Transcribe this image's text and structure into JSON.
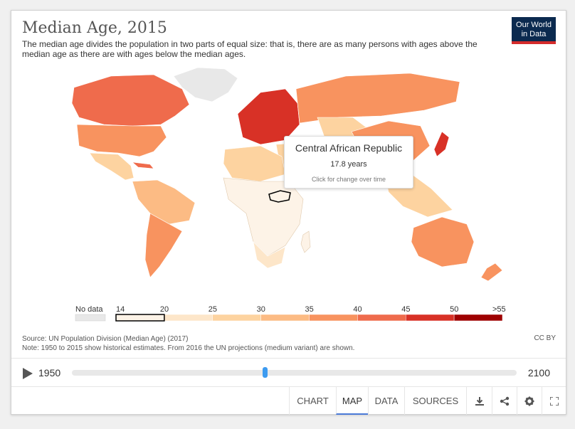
{
  "header": {
    "title": "Median Age, 2015",
    "subtitle": "The median age divides the population in two parts of equal size: that is, there are as many persons with ages above the median age as there are with ages below the median ages.",
    "logo_line1": "Our World",
    "logo_line2": "in Data"
  },
  "tooltip": {
    "country": "Central African Republic",
    "value": "17.8 years",
    "hint": "Click for change over time"
  },
  "legend": {
    "no_data_label": "No data",
    "ticks": [
      "14",
      "20",
      "25",
      "30",
      "35",
      "40",
      "45",
      "50",
      ">55"
    ],
    "colors": [
      "#fdf3e7",
      "#fde6c9",
      "#fdd3a0",
      "#fcbb84",
      "#f8935f",
      "#ef6b4c",
      "#d83126",
      "#9e0000"
    ],
    "no_data_color": "#e8e8e8"
  },
  "footer": {
    "source": "Source: UN Population Division (Median Age) (2017)",
    "note": "Note: 1950 to 2015 show historical estimates. From 2016 the UN projections (medium variant) are shown.",
    "license": "CC BY"
  },
  "timeline": {
    "start_year": "1950",
    "end_year": "2100",
    "position_fraction": 0.433
  },
  "controls": {
    "chart_label": "CHART",
    "map_label": "MAP",
    "data_label": "DATA",
    "sources_label": "SOURCES",
    "active_tab": "MAP"
  },
  "icons": {
    "download": "download-icon",
    "share": "share-icon",
    "settings": "gear-icon",
    "fullscreen": "fullscreen-icon"
  }
}
